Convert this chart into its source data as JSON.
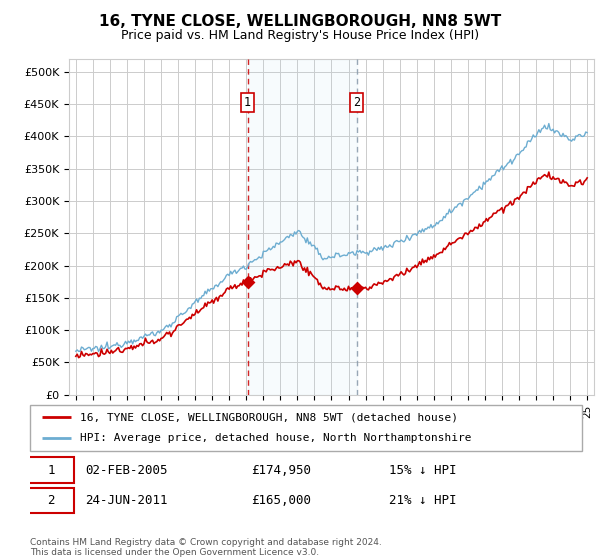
{
  "title": "16, TYNE CLOSE, WELLINGBOROUGH, NN8 5WT",
  "subtitle": "Price paid vs. HM Land Registry's House Price Index (HPI)",
  "hpi_label": "HPI: Average price, detached house, North Northamptonshire",
  "property_label": "16, TYNE CLOSE, WELLINGBOROUGH, NN8 5WT (detached house)",
  "sale1_date": "02-FEB-2005",
  "sale1_price": "£174,950",
  "sale1_hpi": "15% ↓ HPI",
  "sale1_year": 2005.08,
  "sale1_value": 174950,
  "sale2_date": "24-JUN-2011",
  "sale2_price": "£165,000",
  "sale2_hpi": "21% ↓ HPI",
  "sale2_year": 2011.48,
  "sale2_value": 165000,
  "ylim_max": 500000,
  "yticks": [
    0,
    50000,
    100000,
    150000,
    200000,
    250000,
    300000,
    350000,
    400000,
    450000,
    500000
  ],
  "ytick_labels": [
    "£0",
    "£50K",
    "£100K",
    "£150K",
    "£200K",
    "£250K",
    "£300K",
    "£350K",
    "£400K",
    "£450K",
    "£500K"
  ],
  "hpi_color": "#6dadd1",
  "property_color": "#cc0000",
  "vline1_color": "#cc0000",
  "vline2_color": "#8899aa",
  "background_color": "#ffffff",
  "grid_color": "#cccccc",
  "legend_border_color": "#aaaaaa",
  "footer": "Contains HM Land Registry data © Crown copyright and database right 2024.\nThis data is licensed under the Open Government Licence v3.0.",
  "xstart": 1995,
  "xend": 2025
}
